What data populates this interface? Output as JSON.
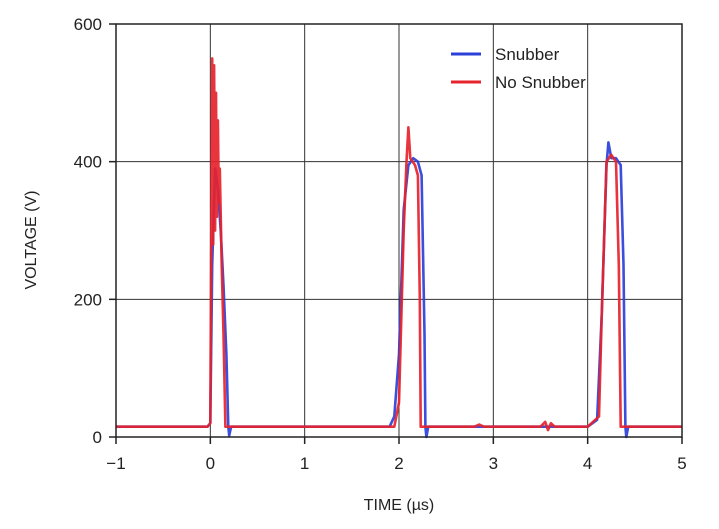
{
  "chart_data": {
    "type": "line",
    "xlabel": "TIME (µs)",
    "ylabel": "VOLTAGE (V)",
    "xlim": [
      -1,
      5
    ],
    "ylim": [
      0,
      600
    ],
    "xticks": [
      "−1",
      "0",
      "1",
      "2",
      "3",
      "4",
      "5"
    ],
    "yticks": [
      "0",
      "200",
      "400",
      "600"
    ],
    "grid": true,
    "legend_position": "top-right",
    "series": [
      {
        "name": "Snubber",
        "color": "#2b3fd9",
        "points": [
          [
            -1,
            15
          ],
          [
            -0.03,
            15
          ],
          [
            0.0,
            20
          ],
          [
            0.02,
            250
          ],
          [
            0.05,
            390
          ],
          [
            0.08,
            360
          ],
          [
            0.11,
            300
          ],
          [
            0.14,
            220
          ],
          [
            0.17,
            120
          ],
          [
            0.19,
            15
          ],
          [
            0.2,
            2
          ],
          [
            0.22,
            15
          ],
          [
            1.9,
            15
          ],
          [
            1.95,
            30
          ],
          [
            2.0,
            120
          ],
          [
            2.05,
            330
          ],
          [
            2.1,
            395
          ],
          [
            2.15,
            405
          ],
          [
            2.2,
            400
          ],
          [
            2.24,
            380
          ],
          [
            2.27,
            150
          ],
          [
            2.28,
            15
          ],
          [
            2.29,
            0
          ],
          [
            2.31,
            15
          ],
          [
            4.0,
            15
          ],
          [
            4.1,
            25
          ],
          [
            4.15,
            180
          ],
          [
            4.2,
            395
          ],
          [
            4.22,
            428
          ],
          [
            4.25,
            405
          ],
          [
            4.3,
            405
          ],
          [
            4.35,
            395
          ],
          [
            4.38,
            250
          ],
          [
            4.4,
            15
          ],
          [
            4.41,
            0
          ],
          [
            4.43,
            15
          ],
          [
            5,
            15
          ]
        ]
      },
      {
        "name": "No Snubber",
        "color": "#e5232d",
        "points": [
          [
            -1,
            15
          ],
          [
            -0.03,
            15
          ],
          [
            0.0,
            20
          ],
          [
            0.01,
            300
          ],
          [
            0.02,
            550
          ],
          [
            0.03,
            280
          ],
          [
            0.04,
            540
          ],
          [
            0.05,
            300
          ],
          [
            0.06,
            500
          ],
          [
            0.07,
            320
          ],
          [
            0.08,
            460
          ],
          [
            0.09,
            340
          ],
          [
            0.1,
            390
          ],
          [
            0.12,
            250
          ],
          [
            0.14,
            150
          ],
          [
            0.16,
            15
          ],
          [
            1.95,
            15
          ],
          [
            2.0,
            50
          ],
          [
            2.05,
            300
          ],
          [
            2.08,
            400
          ],
          [
            2.1,
            450
          ],
          [
            2.12,
            405
          ],
          [
            2.17,
            395
          ],
          [
            2.2,
            380
          ],
          [
            2.22,
            200
          ],
          [
            2.23,
            15
          ],
          [
            2.8,
            15
          ],
          [
            2.85,
            18
          ],
          [
            2.9,
            15
          ],
          [
            3.5,
            15
          ],
          [
            3.55,
            22
          ],
          [
            3.58,
            10
          ],
          [
            3.61,
            20
          ],
          [
            3.65,
            15
          ],
          [
            4.0,
            15
          ],
          [
            4.12,
            30
          ],
          [
            4.15,
            180
          ],
          [
            4.2,
            400
          ],
          [
            4.25,
            410
          ],
          [
            4.3,
            400
          ],
          [
            4.33,
            250
          ],
          [
            4.35,
            15
          ],
          [
            5,
            15
          ]
        ]
      }
    ]
  }
}
